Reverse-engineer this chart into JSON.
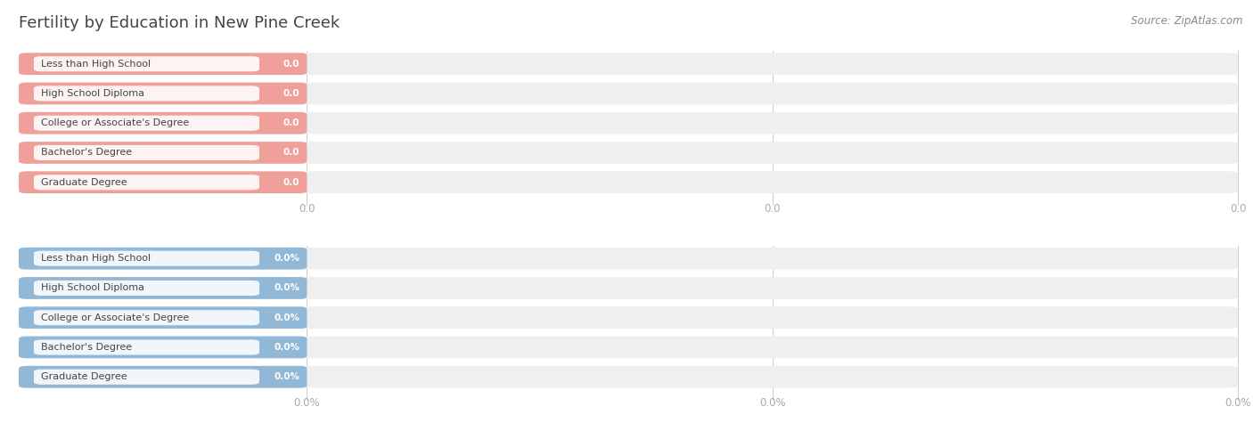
{
  "title": "Fertility by Education in New Pine Creek",
  "source_text": "Source: ZipAtlas.com",
  "categories": [
    "Less than High School",
    "High School Diploma",
    "College or Associate's Degree",
    "Bachelor's Degree",
    "Graduate Degree"
  ],
  "top_values": [
    0.0,
    0.0,
    0.0,
    0.0,
    0.0
  ],
  "bottom_values": [
    0.0,
    0.0,
    0.0,
    0.0,
    0.0
  ],
  "top_bar_color": "#f0a09a",
  "bottom_bar_color": "#92b8d8",
  "bar_bg_color": "#efefef",
  "background_color": "#ffffff",
  "title_color": "#444444",
  "label_color": "#444444",
  "source_color": "#888888",
  "tick_color": "#aaaaaa",
  "grid_color": "#cccccc"
}
